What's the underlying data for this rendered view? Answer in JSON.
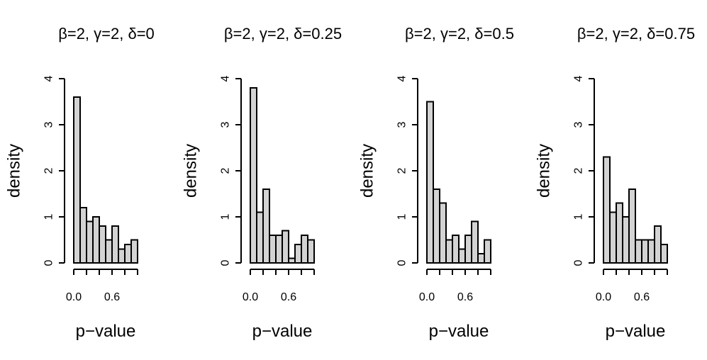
{
  "chart_data": [
    {
      "type": "bar",
      "title": "β=2, γ=2, δ=0",
      "xlabel": "p−value",
      "ylabel": "density",
      "xlim": [
        0,
        1
      ],
      "ylim": [
        0,
        4
      ],
      "bin_width": 0.1,
      "bin_starts": [
        0.0,
        0.1,
        0.2,
        0.3,
        0.4,
        0.5,
        0.6,
        0.7,
        0.8,
        0.9
      ],
      "values": [
        3.6,
        1.2,
        0.9,
        1.0,
        0.8,
        0.5,
        0.8,
        0.3,
        0.4,
        0.5
      ],
      "x_ticks": [
        0.0,
        0.2,
        0.4,
        0.6,
        0.8,
        1.0
      ],
      "x_tick_labels": [
        "0.0",
        "",
        "",
        "0.6",
        "",
        ""
      ],
      "y_ticks": [
        0,
        1,
        2,
        3,
        4
      ],
      "y_tick_labels": [
        "0",
        "1",
        "2",
        "3",
        "4"
      ]
    },
    {
      "type": "bar",
      "title": "β=2, γ=2, δ=0.25",
      "xlabel": "p−value",
      "ylabel": "density",
      "xlim": [
        0,
        1
      ],
      "ylim": [
        0,
        4
      ],
      "bin_width": 0.1,
      "bin_starts": [
        0.0,
        0.1,
        0.2,
        0.3,
        0.4,
        0.5,
        0.6,
        0.7,
        0.8,
        0.9
      ],
      "values": [
        3.8,
        1.1,
        1.6,
        0.6,
        0.6,
        0.7,
        0.1,
        0.4,
        0.6,
        0.5
      ],
      "x_ticks": [
        0.0,
        0.2,
        0.4,
        0.6,
        0.8,
        1.0
      ],
      "x_tick_labels": [
        "0.0",
        "",
        "",
        "0.6",
        "",
        ""
      ],
      "y_ticks": [
        0,
        1,
        2,
        3,
        4
      ],
      "y_tick_labels": [
        "0",
        "1",
        "2",
        "3",
        "4"
      ]
    },
    {
      "type": "bar",
      "title": "β=2, γ=2, δ=0.5",
      "xlabel": "p−value",
      "ylabel": "density",
      "xlim": [
        0,
        1
      ],
      "ylim": [
        0,
        4
      ],
      "bin_width": 0.1,
      "bin_starts": [
        0.0,
        0.1,
        0.2,
        0.3,
        0.4,
        0.5,
        0.6,
        0.7,
        0.8,
        0.9
      ],
      "values": [
        3.5,
        1.6,
        1.3,
        0.5,
        0.6,
        0.3,
        0.6,
        0.9,
        0.2,
        0.5
      ],
      "x_ticks": [
        0.0,
        0.2,
        0.4,
        0.6,
        0.8,
        1.0
      ],
      "x_tick_labels": [
        "0.0",
        "",
        "",
        "0.6",
        "",
        ""
      ],
      "y_ticks": [
        0,
        1,
        2,
        3,
        4
      ],
      "y_tick_labels": [
        "0",
        "1",
        "2",
        "3",
        "4"
      ]
    },
    {
      "type": "bar",
      "title": "β=2, γ=2, δ=0.75",
      "xlabel": "p−value",
      "ylabel": "density",
      "xlim": [
        0,
        1
      ],
      "ylim": [
        0,
        4
      ],
      "bin_width": 0.1,
      "bin_starts": [
        0.0,
        0.1,
        0.2,
        0.3,
        0.4,
        0.5,
        0.6,
        0.7,
        0.8,
        0.9
      ],
      "values": [
        2.3,
        1.1,
        1.3,
        1.0,
        1.6,
        0.5,
        0.5,
        0.5,
        0.8,
        0.4
      ],
      "x_ticks": [
        0.0,
        0.2,
        0.4,
        0.6,
        0.8,
        1.0
      ],
      "x_tick_labels": [
        "0.0",
        "",
        "",
        "0.6",
        "",
        ""
      ],
      "y_ticks": [
        0,
        1,
        2,
        3,
        4
      ],
      "y_tick_labels": [
        "0",
        "1",
        "2",
        "3",
        "4"
      ]
    }
  ],
  "colors": {
    "bar_fill": "#d3d3d3",
    "bar_stroke": "#000000",
    "axis": "#000000",
    "background": "#ffffff"
  }
}
